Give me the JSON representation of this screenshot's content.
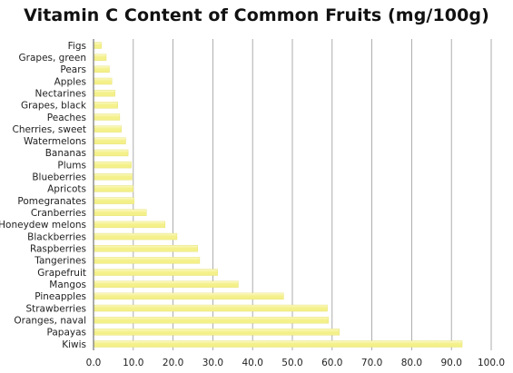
{
  "chart_data": {
    "type": "bar",
    "orientation": "horizontal",
    "title": "Vitamin C Content of Common Fruits (mg/100g)",
    "xlabel": "",
    "ylabel": "",
    "xlim": [
      0,
      100
    ],
    "xticks": [
      0,
      10,
      20,
      30,
      40,
      50,
      60,
      70,
      80,
      90,
      100
    ],
    "xtick_labels": [
      "0.0",
      "10.0",
      "20.0",
      "30.0",
      "40.0",
      "50.0",
      "60.0",
      "70.0",
      "80.0",
      "90.0",
      "100.0"
    ],
    "grid": true,
    "legend": "none",
    "bar_color": "#f4f08a",
    "bar_highlight": "#fbf9c6",
    "grid_color": "#9a9a9a",
    "categories": [
      "Figs",
      "Grapes, green",
      "Pears",
      "Apples",
      "Nectarines",
      "Grapes, black",
      "Peaches",
      "Cherries, sweet",
      "Watermelons",
      "Bananas",
      "Plums",
      "Blueberries",
      "Apricots",
      "Pomegranates",
      "Cranberries",
      "Honeydew melons",
      "Blackberries",
      "Raspberries",
      "Tangerines",
      "Grapefruit",
      "Mangos",
      "Pineapples",
      "Strawberries",
      "Oranges, naval",
      "Papayas",
      "Kiwis"
    ],
    "values": [
      2,
      3.2,
      4,
      4.6,
      5.4,
      6.1,
      6.6,
      7,
      8.1,
      8.7,
      9.5,
      9.7,
      10,
      10.2,
      13.3,
      18,
      21,
      26.2,
      26.7,
      31.2,
      36.4,
      47.8,
      58.8,
      59.1,
      61.8,
      92.7
    ]
  }
}
